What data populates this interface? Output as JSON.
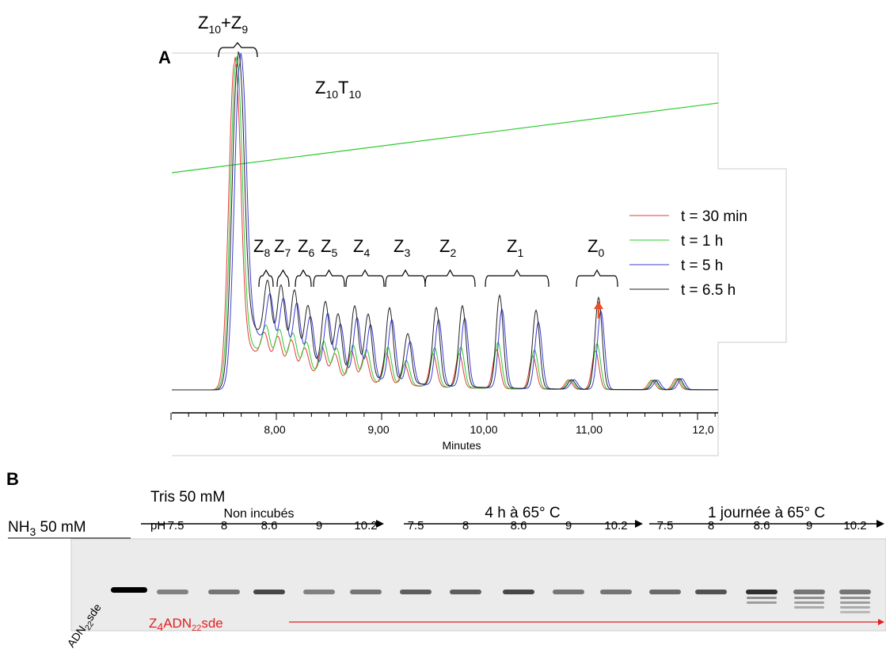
{
  "panel_a": {
    "letter": "A",
    "top_label": {
      "z1": "Z",
      "n1": "10",
      "plus": "+",
      "z2": "Z",
      "n2": "9"
    },
    "sample": {
      "z": "Z",
      "n1": "10",
      "t": "T",
      "n2": "10"
    },
    "peaks": [
      {
        "z": "Z",
        "n": "8"
      },
      {
        "z": "Z",
        "n": "7"
      },
      {
        "z": "Z",
        "n": "6"
      },
      {
        "z": "Z",
        "n": "5"
      },
      {
        "z": "Z",
        "n": "4"
      },
      {
        "z": "Z",
        "n": "3"
      },
      {
        "z": "Z",
        "n": "2"
      },
      {
        "z": "Z",
        "n": "1"
      },
      {
        "z": "Z",
        "n": "0"
      }
    ],
    "legend": [
      {
        "name": "t = 30 min",
        "color": "#e8383d"
      },
      {
        "name": "t = 1 h",
        "color": "#2ec92e"
      },
      {
        "name": "t = 5 h",
        "color": "#3b3bd6"
      },
      {
        "name": "t = 6.5 h",
        "color": "#222222"
      }
    ],
    "x_ticks": [
      "8,00",
      "9,00",
      "10,00",
      "11,00",
      "12,0"
    ],
    "x_label": "Minutes"
  },
  "panel_b": {
    "letter": "B",
    "tris": "Tris 50 mM",
    "nh3": {
      "a": "NH",
      "n": "3",
      "b": " 50 mM"
    },
    "groups": [
      "Non incubés",
      "4 h à 65° C",
      "1 journée à 65° C"
    ],
    "ph_prefix": "pH",
    "ph": [
      "7.5",
      "8",
      "8.6",
      "9",
      "10.2",
      "7.5",
      "8",
      "8.6",
      "9",
      "10.2",
      "7.5",
      "8",
      "8.6",
      "9",
      "10.2"
    ],
    "ladder": {
      "a": "ADN",
      "n": "22",
      "b": "sde"
    },
    "product": {
      "z": "Z",
      "n1": "4",
      "a": "ADN",
      "n2": "22",
      "b": "sde"
    }
  }
}
